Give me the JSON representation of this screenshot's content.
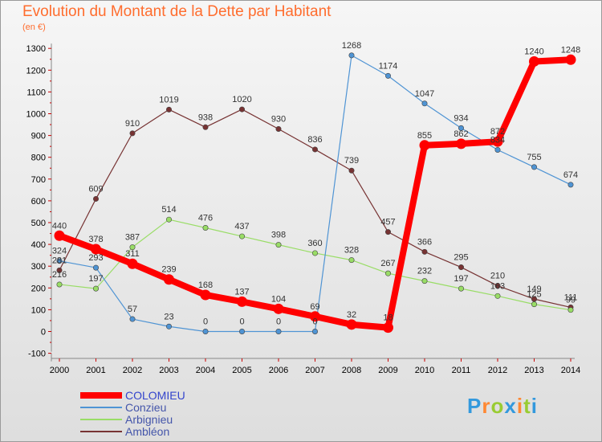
{
  "chart_data": {
    "type": "line",
    "title": "Evolution du Montant de la Dette par Habitant",
    "unit_label": "(en €)",
    "x": [
      "2000",
      "2001",
      "2002",
      "2003",
      "2004",
      "2005",
      "2006",
      "2007",
      "2008",
      "2009",
      "2010",
      "2011",
      "2012",
      "2013",
      "2014"
    ],
    "ylim": [
      -100,
      1300
    ],
    "yticks": [
      -100,
      0,
      100,
      200,
      300,
      400,
      500,
      600,
      700,
      800,
      900,
      1000,
      1100,
      1200,
      1300
    ],
    "grid": false,
    "legend_position": "bottom-left",
    "series": [
      {
        "name": "COLOMIEU",
        "color": "#ff0000",
        "values": [
          440,
          378,
          311,
          239,
          168,
          137,
          104,
          69,
          32,
          18,
          855,
          862,
          872,
          1240,
          1248
        ],
        "labels": [
          "440",
          "378",
          "311",
          "239",
          "168",
          "137",
          "104",
          "69",
          "32",
          "18",
          "855",
          "862",
          "872",
          "1240",
          "1248"
        ]
      },
      {
        "name": "Conzieu",
        "color": "#4f94d4",
        "values": [
          324,
          293,
          57,
          23,
          0,
          0,
          0,
          0,
          1268,
          1174,
          1047,
          934,
          834,
          755,
          674
        ],
        "labels": [
          "324",
          "293",
          "57",
          "23",
          "0",
          "0",
          "0",
          "0",
          "1268",
          "1174",
          "1047",
          "934",
          "834",
          "755",
          "674"
        ]
      },
      {
        "name": "Arbignieu",
        "color": "#99dd66",
        "values": [
          216,
          197,
          387,
          514,
          476,
          437,
          398,
          360,
          328,
          267,
          232,
          197,
          163,
          125,
          99
        ],
        "labels": [
          "216",
          "197",
          "387",
          "514",
          "476",
          "437",
          "398",
          "360",
          "328",
          "267",
          "232",
          "197",
          "163",
          "125",
          "99"
        ]
      },
      {
        "name": "Ambléon",
        "color": "#773333",
        "values": [
          281,
          609,
          910,
          1019,
          938,
          1020,
          930,
          836,
          739,
          457,
          366,
          295,
          210,
          149,
          111
        ],
        "labels": [
          "281",
          "609",
          "910",
          "1019",
          "938",
          "1020",
          "930",
          "836",
          "739",
          "457",
          "366",
          "295",
          "210",
          "149",
          "111"
        ]
      }
    ]
  },
  "logo": {
    "text": "Proxiti",
    "colors": [
      "#3399dd",
      "#ff8833",
      "#99cc33",
      "#3399dd",
      "#ff8833",
      "#99cc33",
      "#3399dd"
    ]
  }
}
